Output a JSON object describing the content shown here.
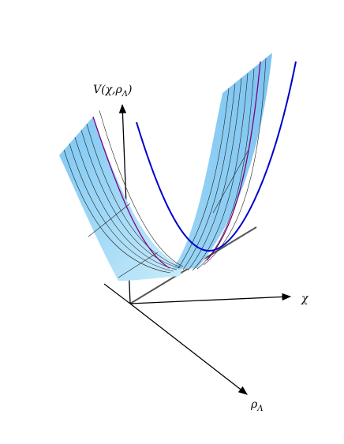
{
  "axes": [
    {
      "label": "V(χ,ρ",
      "subscript": "Λ",
      "suffix": ")"
    },
    {
      "label": "χ"
    },
    {
      "label": "ρ",
      "subscript": "Λ"
    }
  ]
}
